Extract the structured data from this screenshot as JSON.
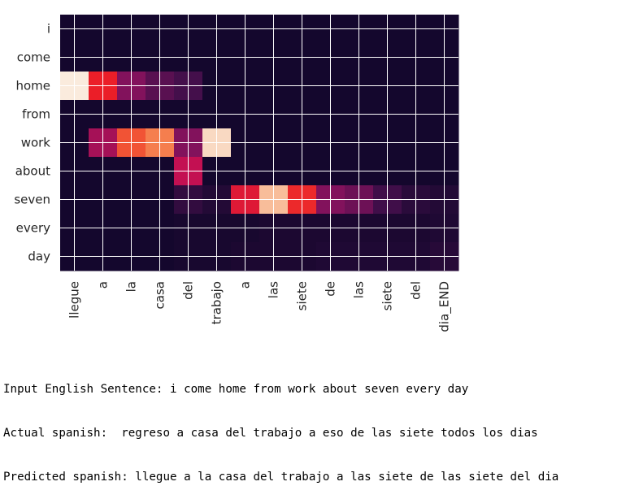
{
  "chart_data": {
    "type": "heatmap",
    "title": "",
    "xlabel": "",
    "ylabel": "",
    "y_categories": [
      "i",
      "come",
      "home",
      "from",
      "work",
      "about",
      "seven",
      "every",
      "day"
    ],
    "x_categories": [
      "llegue",
      "a",
      "la",
      "casa",
      "del",
      "trabajo",
      "a",
      "las",
      "siete",
      "de",
      "las",
      "siete",
      "del",
      "dia_END"
    ],
    "values": [
      [
        0.02,
        0.02,
        0.02,
        0.02,
        0.02,
        0.02,
        0.02,
        0.02,
        0.02,
        0.02,
        0.02,
        0.02,
        0.02,
        0.02
      ],
      [
        0.02,
        0.02,
        0.02,
        0.02,
        0.02,
        0.02,
        0.02,
        0.02,
        0.02,
        0.02,
        0.02,
        0.02,
        0.02,
        0.02
      ],
      [
        1.0,
        0.6,
        0.3,
        0.2,
        0.15,
        0.02,
        0.02,
        0.02,
        0.02,
        0.02,
        0.02,
        0.02,
        0.02,
        0.02
      ],
      [
        0.02,
        0.02,
        0.02,
        0.02,
        0.02,
        0.02,
        0.02,
        0.02,
        0.02,
        0.02,
        0.02,
        0.02,
        0.02,
        0.02
      ],
      [
        0.02,
        0.38,
        0.7,
        0.78,
        0.3,
        0.96,
        0.02,
        0.02,
        0.02,
        0.02,
        0.02,
        0.02,
        0.02,
        0.02
      ],
      [
        0.02,
        0.02,
        0.02,
        0.02,
        0.45,
        0.02,
        0.02,
        0.02,
        0.02,
        0.02,
        0.02,
        0.02,
        0.02,
        0.02
      ],
      [
        0.02,
        0.02,
        0.02,
        0.02,
        0.1,
        0.06,
        0.55,
        0.9,
        0.62,
        0.3,
        0.25,
        0.14,
        0.08,
        0.06
      ],
      [
        0.02,
        0.02,
        0.02,
        0.02,
        0.03,
        0.03,
        0.03,
        0.04,
        0.04,
        0.04,
        0.04,
        0.04,
        0.04,
        0.05
      ],
      [
        0.02,
        0.02,
        0.02,
        0.02,
        0.03,
        0.03,
        0.04,
        0.04,
        0.04,
        0.05,
        0.05,
        0.05,
        0.05,
        0.07
      ]
    ],
    "colormap": "rocket",
    "grid": true,
    "legend": "none"
  },
  "output": {
    "input_line": "Input English Sentence: i come home from work about seven every day",
    "actual_line": "Actual spanish:  regreso a casa del trabajo a eso de las siete todos los dias",
    "predicted_line": "Predicted spanish: llegue a la casa del trabajo a las siete de las siete del dia"
  }
}
